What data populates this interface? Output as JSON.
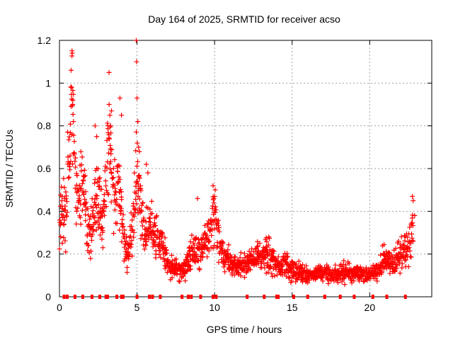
{
  "chart_data": {
    "type": "scatter",
    "title": "Day 164 of 2025, SRMTID for receiver acso",
    "xlabel": "GPS time / hours",
    "ylabel": "SRMTID / TECUs",
    "xlim": [
      0,
      24
    ],
    "ylim": [
      0,
      1.2
    ],
    "grid": true,
    "marker": "+",
    "color": "#ff0000",
    "x_ticks": [
      0,
      5,
      10,
      15,
      20
    ],
    "x_tick_labels": [
      "0",
      "5",
      "10",
      "15",
      "20"
    ],
    "y_ticks": [
      0,
      0.2,
      0.4,
      0.6,
      0.8,
      1,
      1.2
    ],
    "y_tick_labels": [
      "0",
      "0.2",
      "0.4",
      "0.6",
      "0.8",
      "1",
      "1.2"
    ],
    "baseline_markers_x": [
      0.3,
      0.5,
      1.0,
      1.5,
      2.1,
      2.6,
      3.0,
      3.1,
      3.7,
      4.0,
      4.1,
      5.0,
      5.8,
      6.0,
      6.5,
      7.9,
      8.3,
      8.5,
      9.1,
      9.9,
      10.1,
      12.1,
      13.2,
      14.0,
      14.1,
      15.1,
      16.0,
      17.1,
      18.1,
      19.0,
      20.2,
      21.1,
      22.3
    ],
    "series": [
      {
        "name": "SRMTID",
        "anchors": [
          [
            0.0,
            0.28
          ],
          [
            0.1,
            0.4
          ],
          [
            0.25,
            0.45
          ],
          [
            0.4,
            0.35
          ],
          [
            0.5,
            0.5
          ],
          [
            0.6,
            0.75
          ],
          [
            0.8,
            0.95
          ],
          [
            0.9,
            0.7
          ],
          [
            1.0,
            0.55
          ],
          [
            1.2,
            0.45
          ],
          [
            1.4,
            0.55
          ],
          [
            1.6,
            0.5
          ],
          [
            1.8,
            0.35
          ],
          [
            2.0,
            0.3
          ],
          [
            2.2,
            0.35
          ],
          [
            2.4,
            0.5
          ],
          [
            2.6,
            0.45
          ],
          [
            2.8,
            0.35
          ],
          [
            3.0,
            0.5
          ],
          [
            3.2,
            0.75
          ],
          [
            3.4,
            0.6
          ],
          [
            3.6,
            0.45
          ],
          [
            3.8,
            0.55
          ],
          [
            4.0,
            0.4
          ],
          [
            4.2,
            0.25
          ],
          [
            4.4,
            0.2
          ],
          [
            4.6,
            0.25
          ],
          [
            4.8,
            0.4
          ],
          [
            4.95,
            0.6
          ],
          [
            5.1,
            0.5
          ],
          [
            5.3,
            0.35
          ],
          [
            5.5,
            0.3
          ],
          [
            5.8,
            0.35
          ],
          [
            6.0,
            0.3
          ],
          [
            6.3,
            0.3
          ],
          [
            6.6,
            0.25
          ],
          [
            7.0,
            0.15
          ],
          [
            7.5,
            0.13
          ],
          [
            8.0,
            0.12
          ],
          [
            8.5,
            0.2
          ],
          [
            9.0,
            0.22
          ],
          [
            9.4,
            0.25
          ],
          [
            9.7,
            0.3
          ],
          [
            10.0,
            0.38
          ],
          [
            10.3,
            0.25
          ],
          [
            10.6,
            0.2
          ],
          [
            11.0,
            0.15
          ],
          [
            12.0,
            0.14
          ],
          [
            12.5,
            0.18
          ],
          [
            13.0,
            0.2
          ],
          [
            13.5,
            0.2
          ],
          [
            14.0,
            0.14
          ],
          [
            14.5,
            0.16
          ],
          [
            15.0,
            0.12
          ],
          [
            15.5,
            0.12
          ],
          [
            16.0,
            0.1
          ],
          [
            16.5,
            0.1
          ],
          [
            17.0,
            0.12
          ],
          [
            17.5,
            0.1
          ],
          [
            18.0,
            0.11
          ],
          [
            18.5,
            0.12
          ],
          [
            19.0,
            0.1
          ],
          [
            19.5,
            0.1
          ],
          [
            20.0,
            0.1
          ],
          [
            20.5,
            0.12
          ],
          [
            21.0,
            0.18
          ],
          [
            21.5,
            0.15
          ],
          [
            22.0,
            0.2
          ],
          [
            22.4,
            0.22
          ],
          [
            22.8,
            0.3
          ]
        ],
        "spikes": [
          [
            0.75,
            1.06
          ],
          [
            0.78,
            0.98
          ],
          [
            0.85,
            0.9
          ],
          [
            0.9,
            0.82
          ],
          [
            0.8,
            0.76
          ],
          [
            2.3,
            0.8
          ],
          [
            2.4,
            0.75
          ],
          [
            3.2,
            0.9
          ],
          [
            3.25,
            0.85
          ],
          [
            3.35,
            0.87
          ],
          [
            3.3,
            0.8
          ],
          [
            3.9,
            0.93
          ],
          [
            4.0,
            0.85
          ],
          [
            4.95,
            1.2
          ],
          [
            4.97,
            1.1
          ],
          [
            5.0,
            0.93
          ],
          [
            5.05,
            0.82
          ],
          [
            5.1,
            0.7
          ],
          [
            5.15,
            0.68
          ],
          [
            5.6,
            0.62
          ],
          [
            5.7,
            0.58
          ],
          [
            9.9,
            0.52
          ],
          [
            9.95,
            0.46
          ],
          [
            10.0,
            0.47
          ],
          [
            8.9,
            0.46
          ],
          [
            22.75,
            0.47
          ],
          [
            22.8,
            0.45
          ],
          [
            22.9,
            0.38
          ]
        ]
      }
    ]
  }
}
